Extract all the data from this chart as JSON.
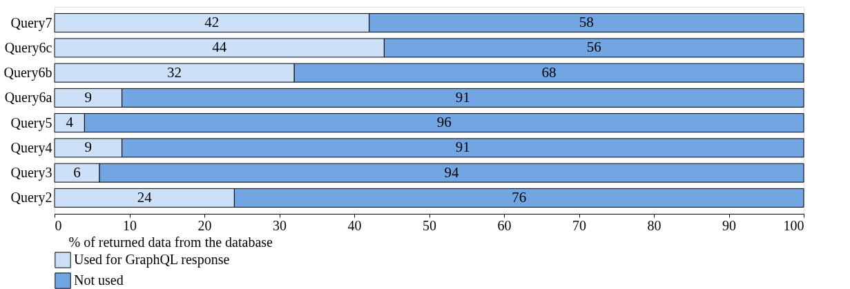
{
  "chart_data": {
    "type": "bar",
    "orientation": "horizontal",
    "stacked": true,
    "xlabel": "% of returned data from the database",
    "categories": [
      "Query7",
      "Query6c",
      "Query6b",
      "Query6a",
      "Query5",
      "Query4",
      "Query3",
      "Query2"
    ],
    "series": [
      {
        "name": "Used for GraphQL response",
        "color": "#cce0f8",
        "values": [
          42,
          44,
          32,
          9,
          4,
          9,
          6,
          24
        ]
      },
      {
        "name": "Not used",
        "color": "#72a6e2",
        "values": [
          58,
          56,
          68,
          91,
          96,
          91,
          94,
          76
        ]
      }
    ],
    "xlim": [
      0,
      100
    ],
    "xticks": [
      0,
      10,
      20,
      30,
      40,
      50,
      60,
      70,
      80,
      90,
      100
    ],
    "data_labels": true,
    "grid": false,
    "legend": "bottom"
  }
}
